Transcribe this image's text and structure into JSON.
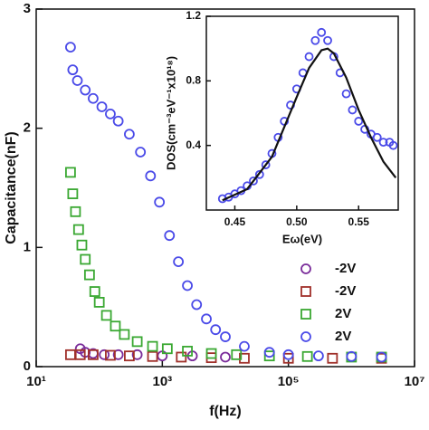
{
  "chart_data": [
    {
      "type": "scatter",
      "xlabel": "f(Hz)",
      "ylabel": "Capacitance(nF)",
      "xscale": "log",
      "xlim": [
        10,
        10000000
      ],
      "ylim": [
        0,
        3
      ],
      "xticks": [
        {
          "value": 10,
          "label": "10¹"
        },
        {
          "value": 1000,
          "label": "10³"
        },
        {
          "value": 100000,
          "label": "10⁵"
        },
        {
          "value": 10000000,
          "label": "10⁷"
        }
      ],
      "yticks": [
        0,
        1,
        2,
        3
      ],
      "legend": "lower right",
      "series": [
        {
          "name": "-2V",
          "color": "#7a2c9a",
          "marker": "circle",
          "x": [
            50,
            60,
            80,
            120,
            200,
            400,
            1000,
            3000,
            10000
          ],
          "values": [
            0.15,
            0.12,
            0.11,
            0.1,
            0.1,
            0.1,
            0.09,
            0.09,
            0.08
          ]
        },
        {
          "name": "-2V",
          "color": "#a0302a",
          "marker": "square",
          "x": [
            35,
            50,
            80,
            150,
            300,
            700,
            2000,
            6000,
            20000,
            100000,
            500000,
            3000000
          ],
          "values": [
            0.1,
            0.1,
            0.1,
            0.095,
            0.09,
            0.085,
            0.08,
            0.075,
            0.07,
            0.07,
            0.07,
            0.07
          ]
        },
        {
          "name": "2V",
          "color": "#3aa832",
          "marker": "square",
          "x": [
            35,
            38,
            42,
            47,
            53,
            60,
            70,
            85,
            100,
            130,
            180,
            250,
            400,
            700,
            1200,
            2500,
            6000,
            15000,
            50000,
            200000,
            1000000,
            3000000
          ],
          "values": [
            1.63,
            1.45,
            1.3,
            1.15,
            1.02,
            0.9,
            0.77,
            0.63,
            0.54,
            0.43,
            0.34,
            0.27,
            0.21,
            0.17,
            0.15,
            0.13,
            0.11,
            0.1,
            0.09,
            0.085,
            0.08,
            0.08
          ]
        },
        {
          "name": "2V",
          "color": "#4a4ae8",
          "marker": "circle",
          "x": [
            35,
            38,
            45,
            60,
            80,
            110,
            150,
            200,
            300,
            450,
            650,
            900,
            1300,
            1800,
            2500,
            3500,
            5000,
            7000,
            10000,
            20000,
            50000,
            100000,
            300000,
            1000000,
            3000000
          ],
          "values": [
            2.68,
            2.49,
            2.4,
            2.32,
            2.25,
            2.18,
            2.12,
            2.06,
            1.95,
            1.8,
            1.6,
            1.38,
            1.1,
            0.88,
            0.68,
            0.52,
            0.4,
            0.31,
            0.25,
            0.17,
            0.12,
            0.1,
            0.09,
            0.085,
            0.08
          ]
        }
      ]
    },
    {
      "type": "scatter",
      "xlabel": "Eω(eV)",
      "ylabel": "DOS(cm⁻³eV⁻¹x10¹⁸)",
      "xlim": [
        0.427,
        0.582
      ],
      "ylim": [
        0,
        1.2
      ],
      "xticks": [
        0.45,
        {
          "value": 0.5,
          "label": "0.50"
        },
        0.55
      ],
      "yticks": [
        0.4,
        0.8,
        1.2
      ],
      "series": [
        {
          "color": "#4a4ae8",
          "marker": "circle",
          "x": [
            0.44,
            0.445,
            0.45,
            0.455,
            0.46,
            0.465,
            0.47,
            0.475,
            0.48,
            0.485,
            0.49,
            0.495,
            0.5,
            0.505,
            0.51,
            0.515,
            0.52,
            0.525,
            0.53,
            0.535,
            0.54,
            0.545,
            0.55,
            0.555,
            0.56,
            0.565,
            0.57,
            0.575,
            0.578
          ],
          "values": [
            0.07,
            0.08,
            0.1,
            0.12,
            0.15,
            0.18,
            0.22,
            0.28,
            0.35,
            0.45,
            0.55,
            0.65,
            0.75,
            0.85,
            0.95,
            1.05,
            1.1,
            1.05,
            0.95,
            0.85,
            0.72,
            0.62,
            0.55,
            0.5,
            0.47,
            0.45,
            0.42,
            0.42,
            0.4
          ]
        },
        {
          "color": "#111111",
          "marker": "none",
          "x": [
            0.44,
            0.46,
            0.48,
            0.5,
            0.51,
            0.52,
            0.525,
            0.53,
            0.54,
            0.55,
            0.56,
            0.57,
            0.58
          ],
          "values": [
            0.06,
            0.13,
            0.33,
            0.7,
            0.88,
            0.99,
            1.0,
            0.97,
            0.82,
            0.62,
            0.45,
            0.3,
            0.2
          ]
        }
      ]
    }
  ]
}
